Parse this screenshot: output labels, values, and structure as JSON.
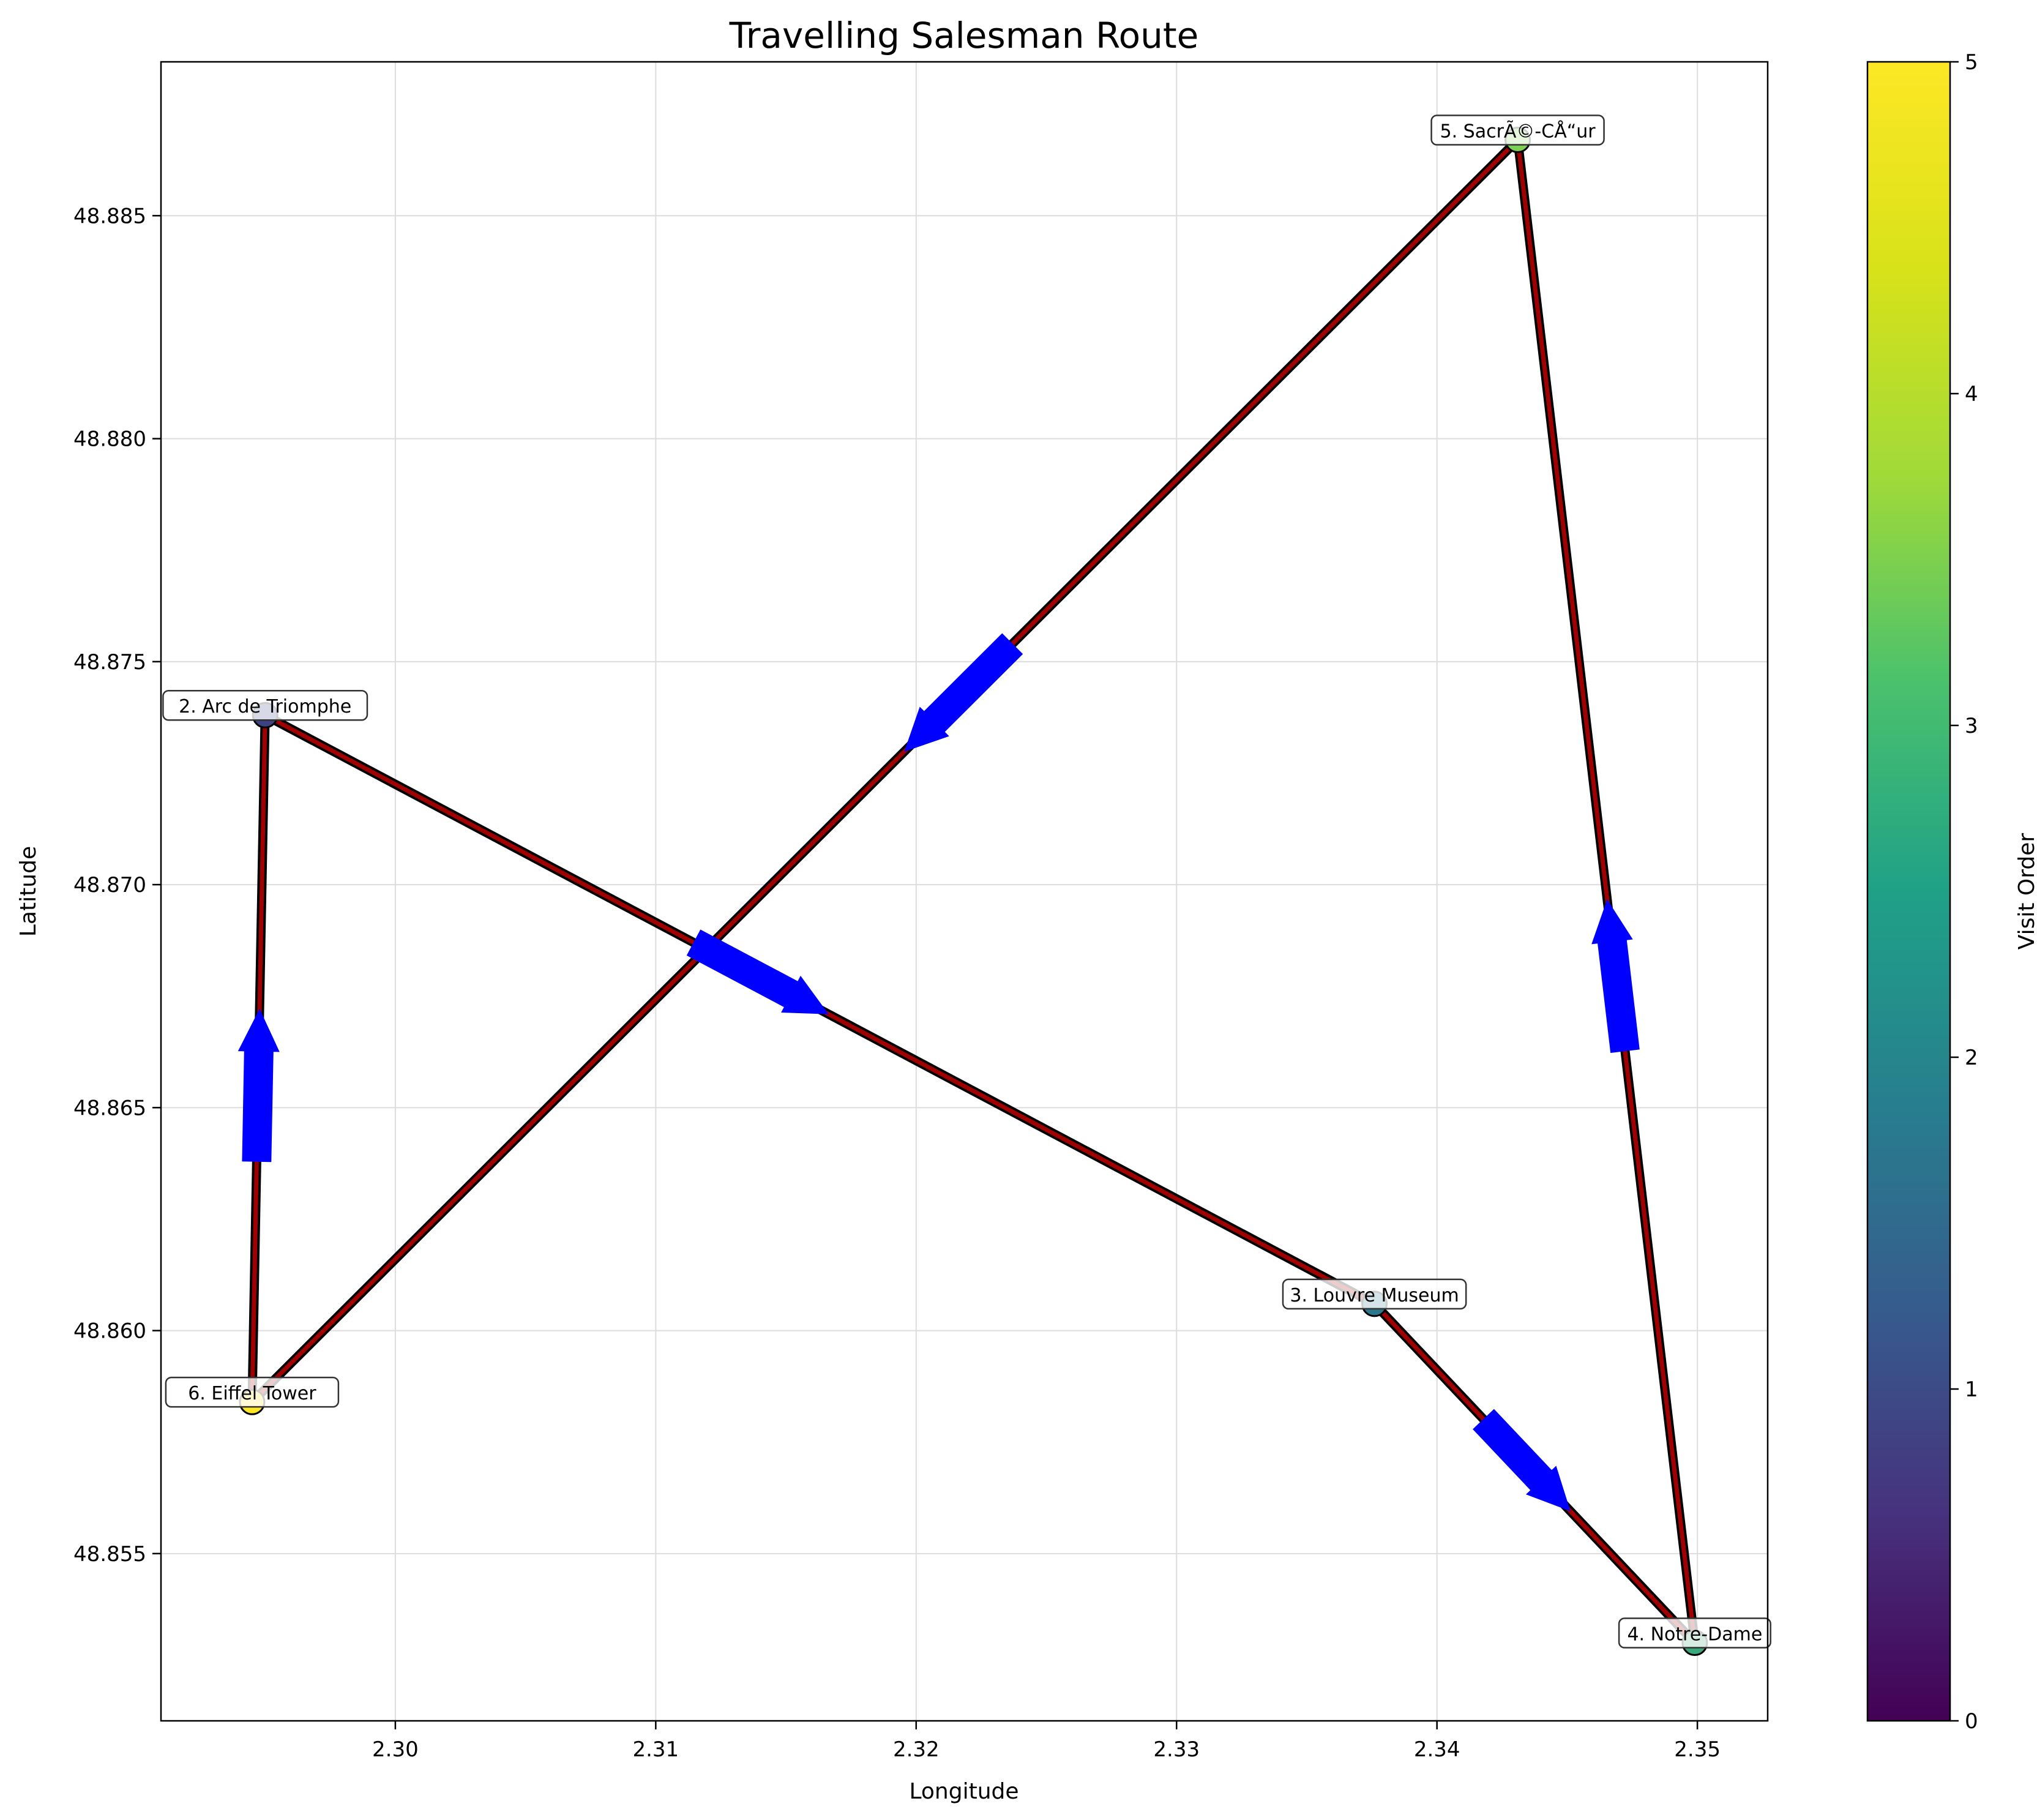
{
  "chart_data": {
    "type": "scatter",
    "title": "Travelling Salesman Route",
    "xlabel": "Longitude",
    "ylabel": "Latitude",
    "xlim": [
      2.291,
      2.3527
    ],
    "ylim": [
      48.85125,
      48.88845
    ],
    "xticks": [
      2.3,
      2.31,
      2.32,
      2.33,
      2.34,
      2.35
    ],
    "xtick_labels": [
      "2.30",
      "2.31",
      "2.32",
      "2.33",
      "2.34",
      "2.35"
    ],
    "yticks": [
      48.855,
      48.86,
      48.865,
      48.87,
      48.875,
      48.88,
      48.885
    ],
    "ytick_labels": [
      "48.855",
      "48.860",
      "48.865",
      "48.870",
      "48.875",
      "48.880",
      "48.885"
    ],
    "grid": true,
    "route_color": "#a00000",
    "arrow_color": "#0000ff",
    "points": [
      {
        "label": "2. Arc de Triomphe",
        "x": 2.295,
        "y": 48.8738,
        "order": 1
      },
      {
        "label": "3. Louvre Museum",
        "x": 2.3376,
        "y": 48.8606,
        "order": 2
      },
      {
        "label": "4. Notre-Dame",
        "x": 2.3499,
        "y": 48.853,
        "order": 3
      },
      {
        "label": "5. SacrÃ©-CÅ“ur",
        "x": 2.3431,
        "y": 48.8867,
        "order": 4
      },
      {
        "label": "6. Eiffel Tower",
        "x": 2.2945,
        "y": 48.8584,
        "order": 5
      }
    ],
    "colorbar": {
      "label": "Visit Order",
      "min": 0,
      "max": 5,
      "ticks": [
        0,
        1,
        2,
        3,
        4,
        5
      ],
      "tick_labels": [
        "0",
        "1",
        "2",
        "3",
        "4",
        "5"
      ],
      "colormap": [
        "#440154",
        "#3b528b",
        "#21918c",
        "#5ec962",
        "#fde725"
      ]
    }
  }
}
